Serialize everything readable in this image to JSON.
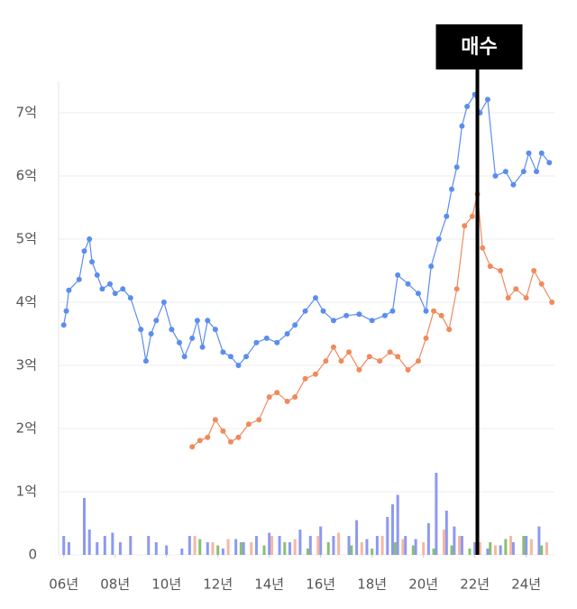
{
  "chart_data": {
    "type": "line",
    "xlim": [
      5.8,
      25.1
    ],
    "ylim": [
      0,
      7.5
    ],
    "xticks": [
      {
        "value": 6,
        "label": "06년"
      },
      {
        "value": 8,
        "label": "08년"
      },
      {
        "value": 10,
        "label": "10년"
      },
      {
        "value": 12,
        "label": "12년"
      },
      {
        "value": 14,
        "label": "14년"
      },
      {
        "value": 16,
        "label": "16년"
      },
      {
        "value": 18,
        "label": "18년"
      },
      {
        "value": 20,
        "label": "20년"
      },
      {
        "value": 22,
        "label": "22년"
      },
      {
        "value": 24,
        "label": "24년"
      }
    ],
    "yticks": [
      0,
      {
        "value": 1,
        "label": "1억"
      },
      {
        "value": 2,
        "label": "2억"
      },
      {
        "value": 3,
        "label": "3억"
      },
      {
        "value": 4,
        "label": "4억"
      },
      {
        "value": 5,
        "label": "5억"
      },
      {
        "value": 6,
        "label": "6억"
      },
      {
        "value": 7,
        "label": "7억"
      }
    ],
    "grid": true,
    "series": [
      {
        "color": "#5b8def",
        "x": [
          6.0,
          6.1,
          6.2,
          6.6,
          6.8,
          7.0,
          7.1,
          7.3,
          7.5,
          7.8,
          8.0,
          8.3,
          8.6,
          9.0,
          9.2,
          9.4,
          9.6,
          9.9,
          10.2,
          10.5,
          10.7,
          11.0,
          11.2,
          11.4,
          11.6,
          11.9,
          12.2,
          12.5,
          12.8,
          13.1,
          13.5,
          13.9,
          14.3,
          14.7,
          15.0,
          15.4,
          15.8,
          16.1,
          16.5,
          17.0,
          17.5,
          18.0,
          18.5,
          18.8,
          19.0,
          19.4,
          19.8,
          20.1,
          20.3,
          20.6,
          20.9,
          21.1,
          21.3,
          21.5,
          21.7,
          22.0,
          22.2,
          22.5,
          22.8,
          23.2,
          23.5,
          23.9,
          24.1,
          24.4,
          24.6,
          24.9
        ],
        "values": [
          3.64,
          3.86,
          4.19,
          4.36,
          4.81,
          5.0,
          4.64,
          4.43,
          4.21,
          4.29,
          4.14,
          4.21,
          4.07,
          3.57,
          3.07,
          3.5,
          3.71,
          4.0,
          3.57,
          3.36,
          3.14,
          3.43,
          3.71,
          3.29,
          3.71,
          3.57,
          3.21,
          3.14,
          3.0,
          3.14,
          3.36,
          3.43,
          3.36,
          3.5,
          3.64,
          3.86,
          4.07,
          3.86,
          3.71,
          3.79,
          3.81,
          3.71,
          3.79,
          3.86,
          4.43,
          4.29,
          4.14,
          3.86,
          4.57,
          5.0,
          5.36,
          5.79,
          6.14,
          6.79,
          7.1,
          7.29,
          7.0,
          7.21,
          6.0,
          6.07,
          5.86,
          6.07,
          6.36,
          6.07,
          6.36,
          6.21
        ]
      },
      {
        "color": "#f08a5d",
        "x": [
          11.0,
          11.3,
          11.6,
          11.9,
          12.2,
          12.5,
          12.8,
          13.2,
          13.6,
          14.0,
          14.3,
          14.7,
          15.0,
          15.4,
          15.8,
          16.2,
          16.5,
          16.8,
          17.1,
          17.5,
          17.9,
          18.3,
          18.7,
          19.0,
          19.4,
          19.8,
          20.1,
          20.4,
          20.7,
          21.0,
          21.3,
          21.6,
          21.9,
          22.1,
          22.3,
          22.6,
          23.0,
          23.3,
          23.6,
          24.0,
          24.3,
          24.6,
          25.0
        ],
        "values": [
          1.71,
          1.81,
          1.86,
          2.14,
          1.96,
          1.79,
          1.86,
          2.07,
          2.14,
          2.5,
          2.57,
          2.43,
          2.5,
          2.79,
          2.86,
          3.07,
          3.29,
          3.07,
          3.21,
          2.93,
          3.14,
          3.07,
          3.21,
          3.14,
          2.93,
          3.07,
          3.43,
          3.86,
          3.79,
          3.57,
          4.21,
          5.21,
          5.36,
          5.71,
          4.86,
          4.57,
          4.5,
          4.07,
          4.21,
          4.07,
          4.5,
          4.29,
          4.0
        ]
      }
    ],
    "bars": [
      {
        "color": "#6f7ff0",
        "x": [
          6.0,
          6.2,
          6.8,
          7.0,
          7.3,
          7.6,
          7.9,
          8.2,
          8.6,
          9.3,
          9.6,
          10.0,
          10.6,
          10.9,
          11.6,
          12.2,
          12.7,
          13.0,
          13.5,
          14.0,
          14.4,
          14.8,
          15.2,
          15.6,
          16.0,
          16.5,
          17.1,
          17.4,
          17.8,
          18.2,
          18.6,
          18.8,
          19.0,
          19.3,
          19.7,
          20.2,
          20.5,
          20.9,
          21.2,
          21.5,
          22.0,
          22.5,
          23.0,
          23.5,
          24.0,
          24.5
        ],
        "values": [
          0.3,
          0.2,
          0.9,
          0.4,
          0.2,
          0.3,
          0.35,
          0.2,
          0.3,
          0.3,
          0.2,
          0.15,
          0.1,
          0.3,
          0.2,
          0.1,
          0.25,
          0.2,
          0.3,
          0.35,
          0.3,
          0.2,
          0.4,
          0.3,
          0.45,
          0.3,
          0.3,
          0.55,
          0.25,
          0.3,
          0.6,
          0.8,
          0.95,
          0.3,
          0.25,
          0.5,
          1.3,
          0.7,
          0.45,
          0.3,
          0.2,
          0.1,
          0.15,
          0.2,
          0.3,
          0.45
        ]
      },
      {
        "color": "#f4a58a",
        "x": [
          11.1,
          11.8,
          12.4,
          13.3,
          14.1,
          15.0,
          15.9,
          16.7,
          17.6,
          18.4,
          19.2,
          20.0,
          20.8,
          21.4,
          22.2,
          22.8,
          23.4,
          24.2,
          24.8
        ],
        "values": [
          0.3,
          0.2,
          0.25,
          0.2,
          0.3,
          0.25,
          0.3,
          0.35,
          0.2,
          0.3,
          0.25,
          0.2,
          0.4,
          0.3,
          0.2,
          0.15,
          0.3,
          0.25,
          0.2
        ]
      },
      {
        "color": "#6ab04c",
        "x": [
          11.3,
          12.0,
          12.9,
          13.8,
          14.6,
          15.5,
          16.3,
          17.2,
          18.0,
          18.9,
          19.6,
          20.4,
          21.1,
          21.8,
          22.6,
          23.2,
          23.9,
          24.6
        ],
        "values": [
          0.25,
          0.15,
          0.2,
          0.15,
          0.2,
          0.1,
          0.2,
          0.15,
          0.1,
          0.2,
          0.15,
          0.1,
          0.15,
          0.1,
          0.2,
          0.25,
          0.3,
          0.15
        ]
      }
    ],
    "annotation": {
      "x": 22.1,
      "label": "매수"
    }
  }
}
